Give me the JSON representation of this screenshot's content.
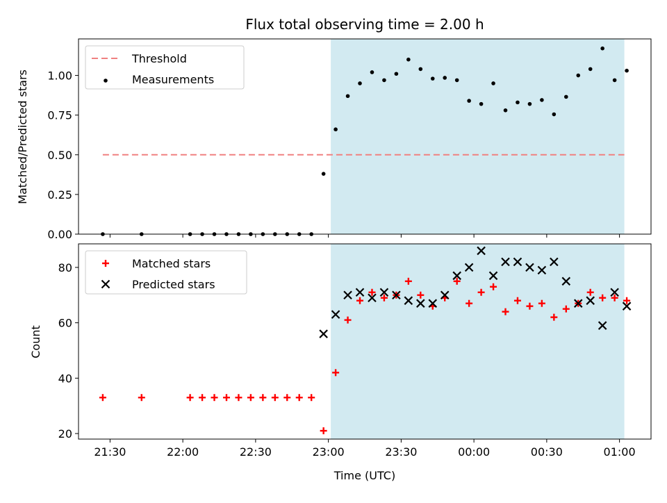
{
  "chart_data": [
    {
      "type": "scatter",
      "title": "Flux total observing time = 2.00 h",
      "xlabel": "",
      "ylabel": "Matched/Predicted stars",
      "ylim": [
        0,
        1.23
      ],
      "yticks": [
        "0.00",
        "0.25",
        "0.50",
        "0.75",
        "1.00"
      ],
      "shaded_span": {
        "from": "23:01",
        "to": "01:02",
        "color": "#add8e6"
      },
      "legend": {
        "placement": "top-left"
      },
      "series": [
        {
          "name": "Threshold",
          "kind": "dashed-line",
          "color": "#f08080",
          "x": [
            "21:27",
            "01:02"
          ],
          "y": [
            0.5,
            0.5
          ]
        },
        {
          "name": "Measurements",
          "kind": "dot",
          "color": "#000000",
          "x": [
            "21:27",
            "21:43",
            "22:03",
            "22:08",
            "22:13",
            "22:18",
            "22:23",
            "22:28",
            "22:33",
            "22:38",
            "22:43",
            "22:48",
            "22:53",
            "22:58",
            "23:03",
            "23:08",
            "23:13",
            "23:18",
            "23:23",
            "23:28",
            "23:33",
            "23:38",
            "23:43",
            "23:48",
            "23:53",
            "23:58",
            "00:03",
            "00:08",
            "00:13",
            "00:18",
            "00:23",
            "00:28",
            "00:33",
            "00:38",
            "00:43",
            "00:48",
            "00:53",
            "00:58",
            "01:03"
          ],
          "y": [
            0,
            0,
            0,
            0,
            0,
            0,
            0,
            0,
            0,
            0,
            0,
            0,
            0,
            0.38,
            0.66,
            0.87,
            0.95,
            1.02,
            0.97,
            1.01,
            1.1,
            1.04,
            0.98,
            0.985,
            0.97,
            0.84,
            0.82,
            0.95,
            0.78,
            0.83,
            0.82,
            0.845,
            0.755,
            0.865,
            1.0,
            1.04,
            1.17,
            0.97,
            1.03
          ]
        }
      ]
    },
    {
      "type": "scatter",
      "title": "",
      "xlabel": "Time (UTC)",
      "ylabel": "Count",
      "ylim": [
        18,
        88.5
      ],
      "yticks": [
        "20",
        "40",
        "60",
        "80"
      ],
      "xticks": [
        "21:30",
        "22:00",
        "22:30",
        "23:00",
        "23:30",
        "00:00",
        "00:30",
        "01:00"
      ],
      "shaded_span": {
        "from": "23:01",
        "to": "01:02",
        "color": "#add8e6"
      },
      "legend": {
        "placement": "top-left"
      },
      "series": [
        {
          "name": "Matched stars",
          "kind": "plus",
          "color": "#ff0000",
          "x": [
            "21:27",
            "21:43",
            "22:03",
            "22:08",
            "22:13",
            "22:18",
            "22:23",
            "22:28",
            "22:33",
            "22:38",
            "22:43",
            "22:48",
            "22:53",
            "22:58",
            "23:03",
            "23:08",
            "23:13",
            "23:18",
            "23:23",
            "23:28",
            "23:33",
            "23:38",
            "23:43",
            "23:48",
            "23:53",
            "23:58",
            "00:03",
            "00:08",
            "00:13",
            "00:18",
            "00:23",
            "00:28",
            "00:33",
            "00:38",
            "00:43",
            "00:48",
            "00:53",
            "00:58",
            "01:03"
          ],
          "y": [
            33,
            33,
            33,
            33,
            33,
            33,
            33,
            33,
            33,
            33,
            33,
            33,
            33,
            21,
            42,
            61,
            68,
            71,
            69,
            70,
            75,
            70,
            66,
            69,
            75,
            67,
            71,
            73,
            64,
            68,
            66,
            67,
            62,
            65,
            67,
            71,
            69,
            69,
            68
          ]
        },
        {
          "name": "Predicted stars",
          "kind": "cross",
          "color": "#000000",
          "x": [
            "22:58",
            "23:03",
            "23:08",
            "23:13",
            "23:18",
            "23:23",
            "23:28",
            "23:33",
            "23:38",
            "23:43",
            "23:48",
            "23:53",
            "23:58",
            "00:03",
            "00:08",
            "00:13",
            "00:18",
            "00:23",
            "00:28",
            "00:33",
            "00:38",
            "00:43",
            "00:48",
            "00:53",
            "00:58",
            "01:03"
          ],
          "y": [
            56,
            63,
            70,
            71,
            69,
            71,
            70,
            68,
            67,
            67,
            70,
            77,
            80,
            86,
            77,
            82,
            82,
            80,
            79,
            82,
            75,
            67,
            68,
            59,
            71,
            66
          ]
        }
      ]
    }
  ]
}
